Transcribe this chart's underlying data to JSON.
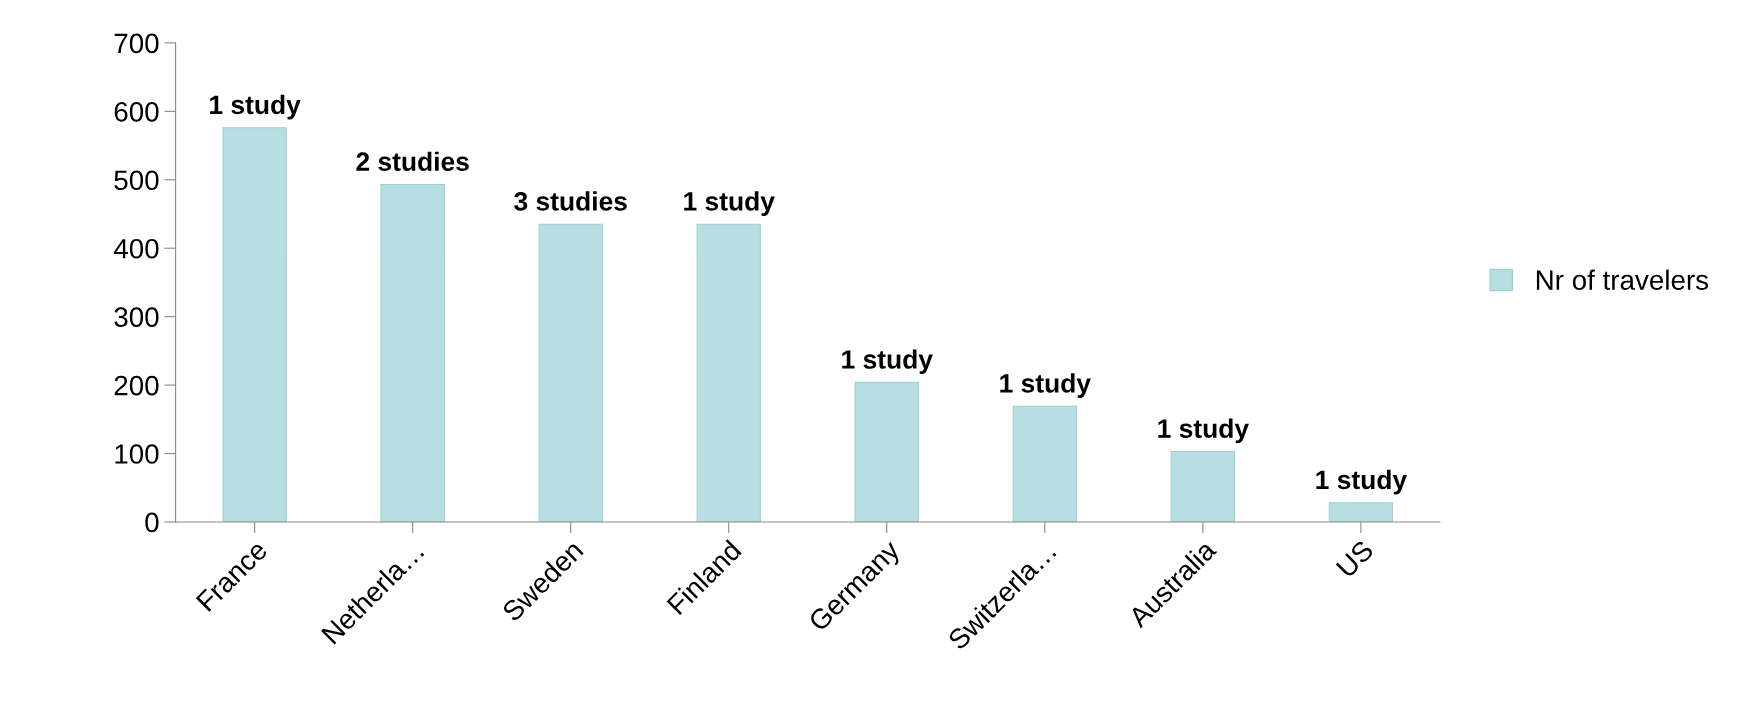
{
  "chart_data": {
    "type": "bar",
    "categories": [
      "France",
      "Netherla…",
      "Sweden",
      "Finland",
      "Germany",
      "Switzerla…",
      "Australia",
      "US"
    ],
    "series": [
      {
        "name": "Nr of travelers",
        "color": "#b7dfe2",
        "values": [
          576,
          493,
          435,
          435,
          204,
          169,
          103,
          28
        ]
      }
    ],
    "annotations": [
      {
        "text": "1 study",
        "x": "France",
        "y": 576
      },
      {
        "text": "2 studies",
        "x": "Netherla…",
        "y": 493
      },
      {
        "text": "3 studies",
        "x": "Sweden",
        "y": 435
      },
      {
        "text": "1 study",
        "x": "Finland",
        "y": 435
      },
      {
        "text": "1 study",
        "x": "Germany",
        "y": 204
      },
      {
        "text": "1 study",
        "x": "Switzerla…",
        "y": 169
      },
      {
        "text": "1 study",
        "x": "Australia",
        "y": 103
      },
      {
        "text": "1 study",
        "x": "US",
        "y": 28
      }
    ],
    "ylim": [
      0,
      700
    ],
    "yticks": [
      0,
      100,
      200,
      300,
      400,
      500,
      600,
      700
    ],
    "grid": false,
    "legend": "right"
  }
}
